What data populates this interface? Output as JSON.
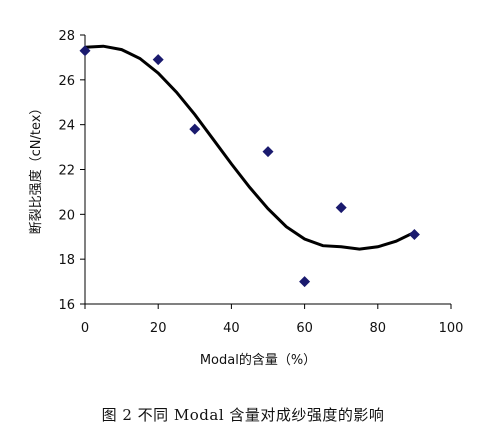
{
  "caption": "图 2   不同 Modal 含量对成纱强度的影响",
  "chart_data": {
    "type": "scatter",
    "xlabel": "Modal的含量（%）",
    "ylabel": "断裂比强度（cN/tex）",
    "xlim": [
      0,
      100
    ],
    "ylim": [
      16,
      28
    ],
    "xticks": [
      0,
      20,
      40,
      60,
      80,
      100
    ],
    "yticks": [
      16,
      18,
      20,
      22,
      24,
      26,
      28
    ],
    "grid": false,
    "marker": "diamond",
    "marker_color": "#1a1a6e",
    "trend_color": "#000000",
    "series": [
      {
        "values": [
          {
            "x": 0,
            "y": 27.3
          },
          {
            "x": 20,
            "y": 26.9
          },
          {
            "x": 30,
            "y": 23.8
          },
          {
            "x": 50,
            "y": 22.8
          },
          {
            "x": 60,
            "y": 17.0
          },
          {
            "x": 70,
            "y": 20.3
          },
          {
            "x": 90,
            "y": 19.1
          }
        ]
      }
    ],
    "trendline": {
      "type": "polynomial",
      "x": [
        0,
        5,
        10,
        15,
        20,
        25,
        30,
        35,
        40,
        45,
        50,
        55,
        60,
        65,
        70,
        75,
        80,
        85,
        90
      ],
      "y": [
        27.45,
        27.5,
        27.35,
        26.95,
        26.3,
        25.45,
        24.45,
        23.35,
        22.25,
        21.2,
        20.25,
        19.45,
        18.9,
        18.6,
        18.55,
        18.45,
        18.55,
        18.8,
        19.2
      ]
    }
  }
}
